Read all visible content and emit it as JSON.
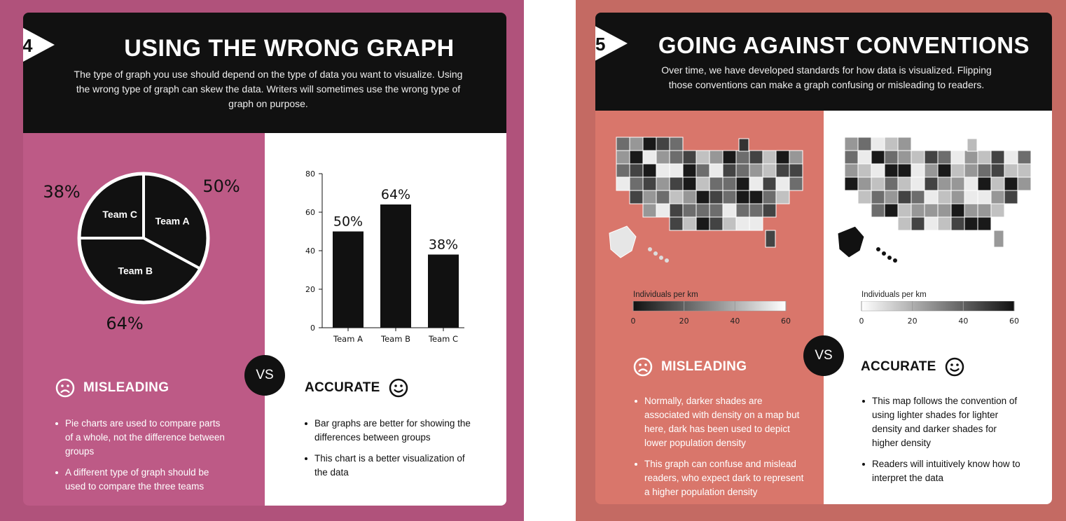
{
  "panel4": {
    "number": "4",
    "title": "USING THE WRONG GRAPH",
    "description": "The type of graph you use should depend on the type of data you want to visualize. Using the wrong type of graph can skew the data. Writers will sometimes use the wrong type of graph on purpose.",
    "misleading_label": "MISLEADING",
    "accurate_label": "ACCURATE",
    "vs_label": "VS",
    "misleading_points": [
      "Pie charts are used to compare parts of a whole, not the difference between groups",
      "A different type of graph should be used to compare the three teams"
    ],
    "accurate_points": [
      "Bar graphs are better for showing the differences between groups",
      "This chart is a better visualization of the data"
    ],
    "colors": {
      "panel_bg": "#b0527b",
      "left_bg": "#bd5a86",
      "dark": "#111111"
    }
  },
  "panel5": {
    "number": "5",
    "title": "GOING AGAINST CONVENTIONS",
    "description": "Over time, we have developed standards for how data is visualized. Flipping those conventions can make a graph confusing or misleading to readers.",
    "misleading_label": "MISLEADING",
    "accurate_label": "ACCURATE",
    "vs_label": "VS",
    "legend_title": "Individuals per km",
    "misleading_points": [
      "Normally, darker shades are associated with density on a map but here, dark has been used to depict lower population density",
      "This graph can confuse and mislead readers, who expect dark to represent a higher population density"
    ],
    "accurate_points": [
      "This map follows the convention of using lighter shades for lighter density and darker shades for higher density",
      "Readers will intuitively know how to interpret the data"
    ],
    "colors": {
      "panel_bg": "#c46a63",
      "left_bg": "#d9766b",
      "dark": "#111111"
    }
  },
  "chart_data": [
    {
      "type": "pie",
      "categories": [
        "Team A",
        "Team B",
        "Team C"
      ],
      "values": [
        50,
        64,
        38
      ],
      "labels": [
        "50%",
        "64%",
        "38%"
      ]
    },
    {
      "type": "bar",
      "categories": [
        "Team A",
        "Team B",
        "Team C"
      ],
      "values": [
        50,
        64,
        38
      ],
      "labels": [
        "50%",
        "64%",
        "38%"
      ],
      "ylim": [
        0,
        80
      ],
      "yticks": [
        0,
        20,
        40,
        60,
        80
      ]
    },
    {
      "type": "heatmap",
      "title": "Individuals per km",
      "scale": "dark-to-light (misleading)",
      "ticks": [
        0,
        20,
        40,
        60
      ]
    },
    {
      "type": "heatmap",
      "title": "Individuals per km",
      "scale": "light-to-dark (accurate)",
      "ticks": [
        0,
        20,
        40,
        60
      ]
    }
  ]
}
